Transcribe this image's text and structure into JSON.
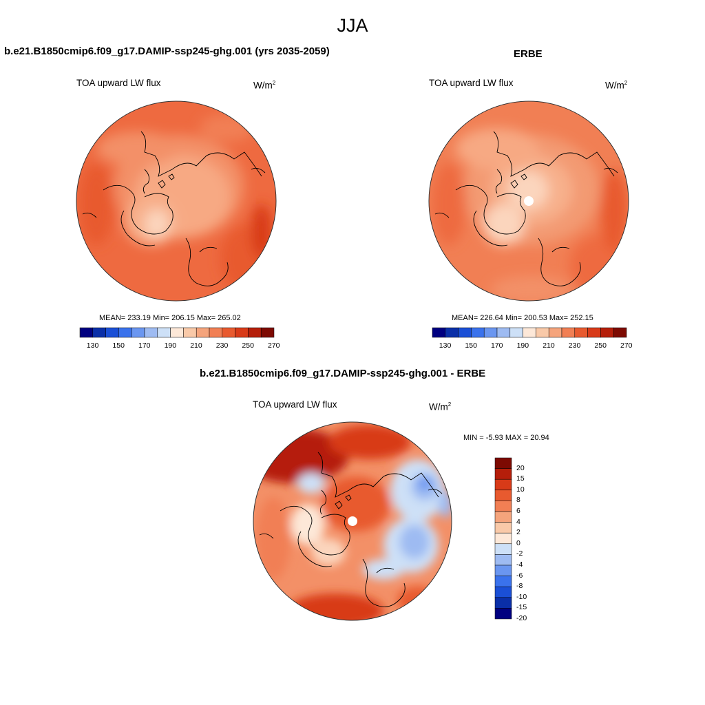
{
  "page_title": "JJA",
  "panel_top_left": {
    "case_title": "b.e21.B1850cmip6.f09_g17.DAMIP-ssp245-ghg.001 (yrs 2035-2059)",
    "variable": "TOA upward LW flux",
    "units": "W/m",
    "units_sup": "2",
    "stats": "MEAN= 233.19  Min= 206.15  Max= 265.02"
  },
  "panel_top_right": {
    "case_title": "ERBE",
    "variable": "TOA upward LW flux",
    "units": "W/m",
    "units_sup": "2",
    "stats": "MEAN= 226.64  Min= 200.53  Max= 252.15"
  },
  "panel_bottom": {
    "case_title": "b.e21.B1850cmip6.f09_g17.DAMIP-ssp245-ghg.001 - ERBE",
    "variable": "TOA upward LW flux",
    "units": "W/m",
    "units_sup": "2",
    "minmax": "MIN =  -5.93 MAX =  20.94"
  },
  "colorbar_abs": {
    "colors": [
      "#000080",
      "#0a2fa8",
      "#1a4fd6",
      "#3a72ec",
      "#6a96f0",
      "#9ebbf2",
      "#cde0f7",
      "#fde8d8",
      "#f9c9a8",
      "#f5a47c",
      "#f17f54",
      "#e85a2f",
      "#d83a18",
      "#b51e0a",
      "#7d0a02"
    ],
    "tick_labels": [
      "130",
      "150",
      "170",
      "190",
      "210",
      "230",
      "250",
      "270"
    ]
  },
  "colorbar_diff": {
    "colors": [
      "#7d0a02",
      "#b51e0a",
      "#d83a18",
      "#e85a2f",
      "#f17f54",
      "#f5a47c",
      "#f9c9a8",
      "#fde8d8",
      "#cde0f7",
      "#9ebbf2",
      "#6a96f0",
      "#3a72ec",
      "#1a4fd6",
      "#0a2fa8",
      "#000080"
    ],
    "tick_labels": [
      "20",
      "15",
      "10",
      "8",
      "6",
      "4",
      "2",
      "0",
      "-2",
      "-4",
      "-6",
      "-8",
      "-10",
      "-15",
      "-20"
    ]
  },
  "chart_data": [
    {
      "type": "heatmap",
      "title": "b.e21.B1850cmip6.f09_g17.DAMIP-ssp245-ghg.001 (yrs 2035-2059)",
      "subtitle": "TOA upward LW flux",
      "units": "W/m2",
      "projection": "polar stereographic (north)",
      "mean": 233.19,
      "min": 206.15,
      "max": 265.02,
      "levels": [
        130,
        140,
        150,
        160,
        170,
        180,
        190,
        200,
        210,
        220,
        230,
        240,
        250,
        260,
        270
      ]
    },
    {
      "type": "heatmap",
      "title": "ERBE",
      "subtitle": "TOA upward LW flux",
      "units": "W/m2",
      "projection": "polar stereographic (north)",
      "mean": 226.64,
      "min": 200.53,
      "max": 252.15,
      "levels": [
        130,
        140,
        150,
        160,
        170,
        180,
        190,
        200,
        210,
        220,
        230,
        240,
        250,
        260,
        270
      ]
    },
    {
      "type": "heatmap",
      "title": "b.e21.B1850cmip6.f09_g17.DAMIP-ssp245-ghg.001 - ERBE",
      "subtitle": "TOA upward LW flux",
      "units": "W/m2",
      "projection": "polar stereographic (north)",
      "min": -5.93,
      "max": 20.94,
      "levels": [
        -20,
        -15,
        -10,
        -8,
        -6,
        -4,
        -2,
        0,
        2,
        4,
        6,
        8,
        10,
        15,
        20
      ]
    }
  ]
}
